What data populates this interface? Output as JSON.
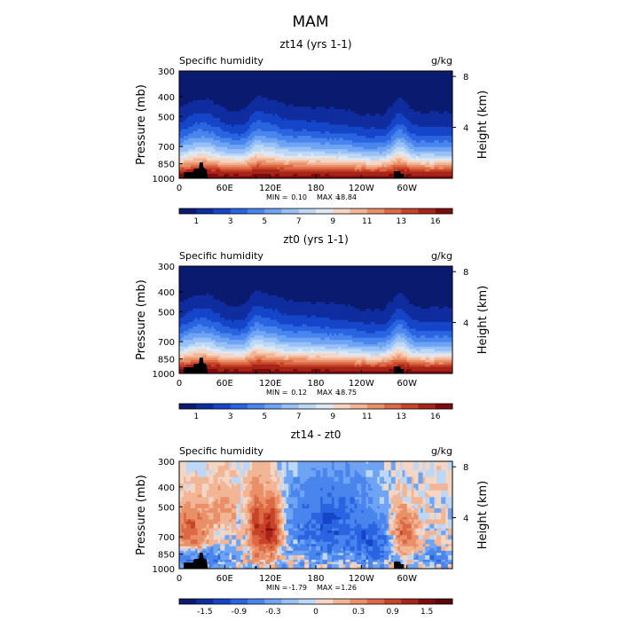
{
  "suptitle": "MAM",
  "chart_data": [
    {
      "type": "heatmap",
      "title": "zt14 (yrs 1-1)",
      "variable": "Specific humidity",
      "units": "g/kg",
      "ylabel": "Pressure (mb)",
      "y2label": "Height (km)",
      "x_ticks": [
        "0",
        "60E",
        "120E",
        "180",
        "120W",
        "60W"
      ],
      "x_tick_lon": [
        0,
        60,
        120,
        180,
        240,
        300
      ],
      "xlim": [
        0,
        360
      ],
      "y_ticks": [
        300,
        400,
        500,
        700,
        850,
        1000
      ],
      "ylim": [
        1000,
        300
      ],
      "height_ticks": [
        {
          "label": "8",
          "km": 8
        },
        {
          "label": "4",
          "km": 4
        }
      ],
      "stats": {
        "min_label": "MIN =",
        "min": "0.10",
        "max_label": "MAX =",
        "max": "18.84"
      },
      "field_kind": "absolute",
      "colorbar": {
        "labels": [
          "1",
          "3",
          "5",
          "7",
          "9",
          "11",
          "13",
          "16"
        ]
      },
      "colors": [
        "#0a1a6e",
        "#0f2d9e",
        "#1545c8",
        "#2a64e0",
        "#4a85ee",
        "#6fa4f4",
        "#96c0f7",
        "#bdd8f6",
        "#dde8f2",
        "#f5d6c4",
        "#f2b596",
        "#ea9069",
        "#dc6945",
        "#c84428",
        "#a82418",
        "#7c0d0c"
      ]
    },
    {
      "type": "heatmap",
      "title": "zt0 (yrs 1-1)",
      "variable": "Specific humidity",
      "units": "g/kg",
      "ylabel": "Pressure (mb)",
      "y2label": "Height (km)",
      "x_ticks": [
        "0",
        "60E",
        "120E",
        "180",
        "120W",
        "60W"
      ],
      "x_tick_lon": [
        0,
        60,
        120,
        180,
        240,
        300
      ],
      "xlim": [
        0,
        360
      ],
      "y_ticks": [
        300,
        400,
        500,
        700,
        850,
        1000
      ],
      "ylim": [
        1000,
        300
      ],
      "height_ticks": [
        {
          "label": "8",
          "km": 8
        },
        {
          "label": "4",
          "km": 4
        }
      ],
      "stats": {
        "min_label": "MIN =",
        "min": "0.12",
        "max_label": "MAX =",
        "max": "18.75"
      },
      "field_kind": "absolute",
      "colorbar": {
        "labels": [
          "1",
          "3",
          "5",
          "7",
          "9",
          "11",
          "13",
          "16"
        ]
      },
      "colors": [
        "#0a1a6e",
        "#0f2d9e",
        "#1545c8",
        "#2a64e0",
        "#4a85ee",
        "#6fa4f4",
        "#96c0f7",
        "#bdd8f6",
        "#dde8f2",
        "#f5d6c4",
        "#f2b596",
        "#ea9069",
        "#dc6945",
        "#c84428",
        "#a82418",
        "#7c0d0c"
      ]
    },
    {
      "type": "heatmap",
      "title": "zt14 - zt0",
      "variable": "Specific humidity",
      "units": "g/kg",
      "ylabel": "Pressure (mb)",
      "y2label": "Height (km)",
      "x_ticks": [
        "0",
        "60E",
        "120E",
        "180",
        "120W",
        "60W"
      ],
      "x_tick_lon": [
        0,
        60,
        120,
        180,
        240,
        300
      ],
      "xlim": [
        0,
        360
      ],
      "y_ticks": [
        300,
        400,
        500,
        700,
        850,
        1000
      ],
      "ylim": [
        1000,
        300
      ],
      "height_ticks": [
        {
          "label": "8",
          "km": 8
        },
        {
          "label": "4",
          "km": 4
        }
      ],
      "stats": {
        "min_label": "MIN =",
        "min": "-1.79",
        "max_label": "MAX =",
        "max": "1.26"
      },
      "field_kind": "difference",
      "colorbar": {
        "labels": [
          "-1.5",
          "-0.9",
          "-0.3",
          "0",
          "0.3",
          "0.9",
          "1.5"
        ]
      },
      "colors": [
        "#0a1a6e",
        "#0f2d9e",
        "#1545c8",
        "#2a64e0",
        "#4a85ee",
        "#6fa4f4",
        "#96c0f7",
        "#bdd8f6",
        "#f5d6c4",
        "#f2b596",
        "#ea9069",
        "#dc6945",
        "#c84428",
        "#a82418",
        "#7c0d0c",
        "#5a0606"
      ]
    }
  ]
}
